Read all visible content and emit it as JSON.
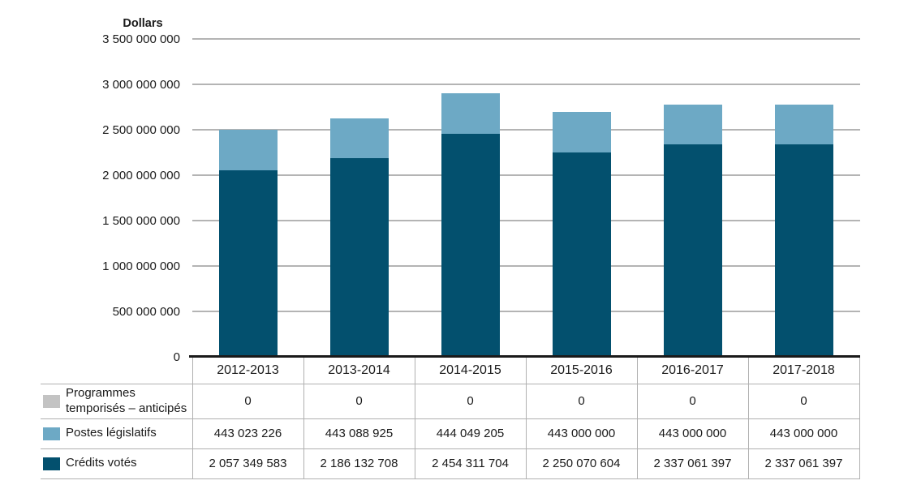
{
  "chart_data": {
    "type": "bar",
    "stacked": true,
    "y_axis_title": "Dollars",
    "categories": [
      "2012-2013",
      "2013-2014",
      "2014-2015",
      "2015-2016",
      "2016-2017",
      "2017-2018"
    ],
    "series": [
      {
        "name": "Crédits votés",
        "color": "#03506E",
        "values": [
          2057349583,
          2186132708,
          2454311704,
          2250070604,
          2337061397,
          2337061397
        ],
        "labels": [
          "2 057 349 583",
          "2 186 132 708",
          "2 454 311 704",
          "2 250 070 604",
          "2 337 061 397",
          "2 337 061 397"
        ]
      },
      {
        "name": "Postes législatifs",
        "color": "#6DA9C5",
        "values": [
          443023226,
          443088925,
          444049205,
          443000000,
          443000000,
          443000000
        ],
        "labels": [
          "443 023 226",
          "443 088 925",
          "444 049 205",
          "443 000 000",
          "443 000 000",
          "443 000 000"
        ]
      },
      {
        "name": "Programmes temporisés – anticipés",
        "color": "#C3C3C3",
        "values": [
          0,
          0,
          0,
          0,
          0,
          0
        ],
        "labels": [
          "0",
          "0",
          "0",
          "0",
          "0",
          "0"
        ]
      }
    ],
    "table_row_order": [
      2,
      1,
      0
    ],
    "ylim": [
      0,
      3500000000
    ],
    "ytick_step": 500000000,
    "ytick_labels": [
      "0",
      "500 000 000",
      "1 000 000 000",
      "1 500 000 000",
      "2 000 000 000",
      "2 500 000 000",
      "3 000 000 000",
      "3 500 000 000"
    ],
    "grid": true,
    "legend_position": "table-left-column"
  }
}
